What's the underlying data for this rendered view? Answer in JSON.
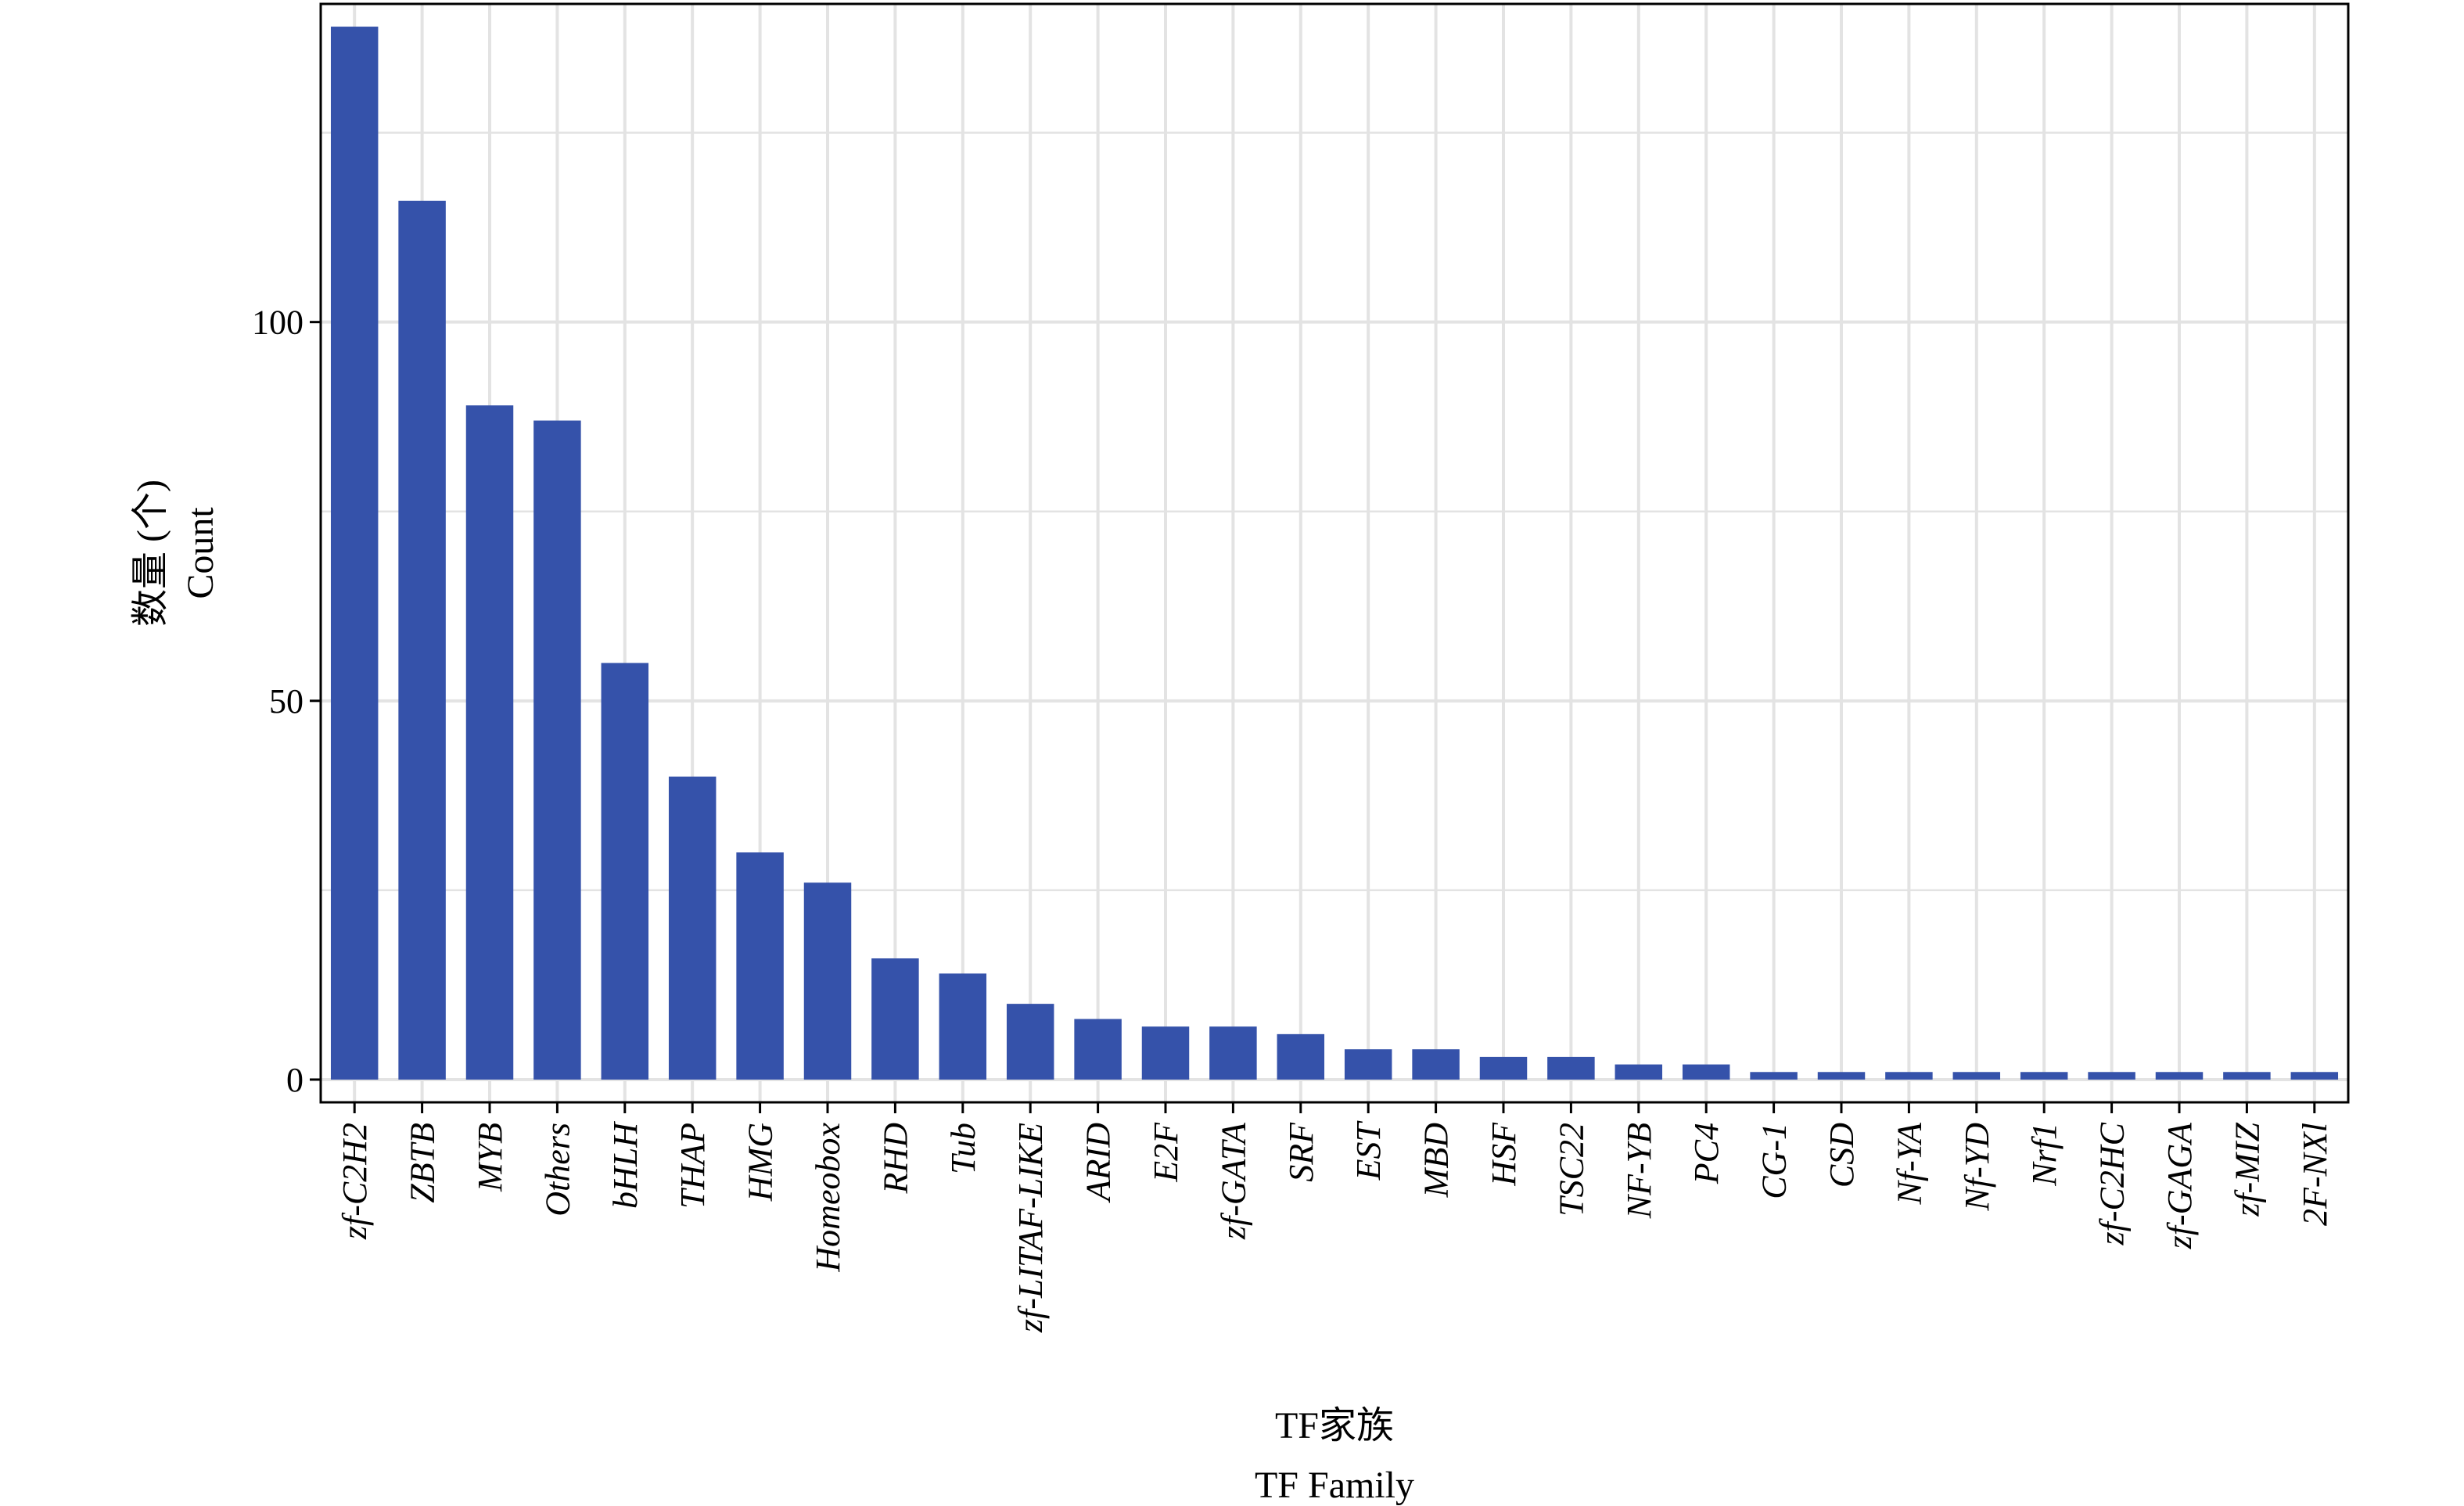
{
  "chart_data": {
    "type": "bar",
    "categories": [
      "zf-C2H2",
      "ZBTB",
      "MYB",
      "Others",
      "bHLH",
      "THAP",
      "HMG",
      "Homeobox",
      "RHD",
      "Tub",
      "zf-LITAF-LIKE",
      "ARID",
      "E2F",
      "zf-GATA",
      "SRF",
      "EST",
      "MBD",
      "HSF",
      "TSC22",
      "NF-YB",
      "PC4",
      "CG-1",
      "CSD",
      "Nf-YA",
      "Nf-YD",
      "Nrf1",
      "zf-C2HC",
      "zf-GAGA",
      "zf-MIZ",
      "2F-NXl"
    ],
    "values": [
      139,
      116,
      89,
      87,
      55,
      40,
      30,
      26,
      16,
      14,
      10,
      8,
      7,
      7,
      6,
      4,
      4,
      3,
      3,
      2,
      2,
      1,
      1,
      1,
      1,
      1,
      1,
      1,
      1,
      1
    ],
    "ylim": [
      -3,
      142
    ],
    "yticks": [
      0,
      50,
      100
    ],
    "ylabel_cn": "数量 (个)",
    "ylabel_en": "Count",
    "xlabel_cn": "TF家族",
    "xlabel_en": "TF Family",
    "grid": true,
    "bar_color": "#3552AA",
    "grid_color": "#E3E3E3"
  }
}
